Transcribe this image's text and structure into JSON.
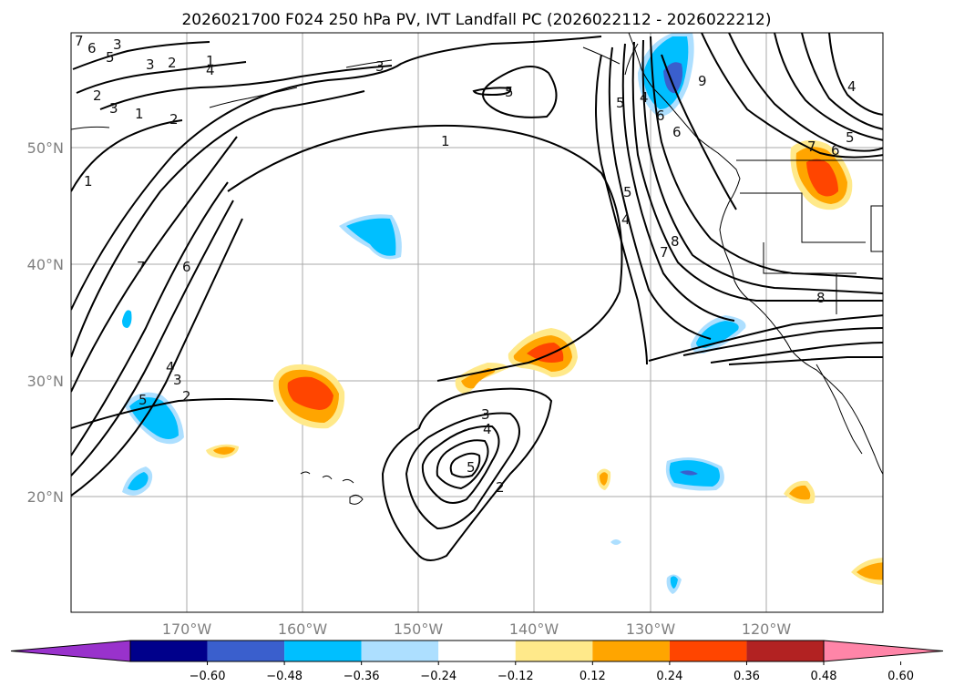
{
  "title": "2026021700 F024 250 hPa PV, IVT Landfall PC (2026022112 - 2026022212)",
  "lat_labels": [
    "50°N",
    "40°N",
    "30°N",
    "20°N"
  ],
  "lon_labels": [
    "170°W",
    "160°W",
    "150°W",
    "140°W",
    "130°W",
    "120°W"
  ],
  "colorbar": {
    "ticks": [
      "−0.60",
      "−0.48",
      "−0.36",
      "−0.24",
      "−0.12",
      "0.12",
      "0.24",
      "0.36",
      "0.48",
      "0.60"
    ],
    "colors": [
      "#9932CC",
      "#00008B",
      "#3A5FCD",
      "#00BFFF",
      "#ADDFFF",
      "#FFFFFF",
      "#FFE98A",
      "#FFA500",
      "#FF4500",
      "#B22222",
      "#FF85A8"
    ]
  },
  "contour_labels": {
    "c1": "1",
    "c2": "2",
    "c3": "3",
    "c4": "4",
    "c5": "5",
    "c6": "6",
    "c7": "7",
    "c8": "8",
    "c9": "9",
    "c10": "1",
    "c11": "2",
    "c12": "3",
    "c13": "5",
    "c14": "6",
    "c15": "2",
    "c16": "3",
    "c17": "4",
    "c18": "7",
    "c19": "6",
    "c20": "5",
    "c21": "4",
    "c22": "3",
    "c23": "2",
    "c24": "5",
    "c25": "3",
    "c26": "4",
    "c27": "5",
    "c28": "2",
    "c29": "5",
    "c30": "4",
    "c31": "7",
    "c32": "8",
    "c33": "6",
    "c34": "5",
    "c35": "6",
    "c36": "4",
    "c37": "1",
    "c38": "7",
    "c39": "1",
    "c40": "3"
  }
}
